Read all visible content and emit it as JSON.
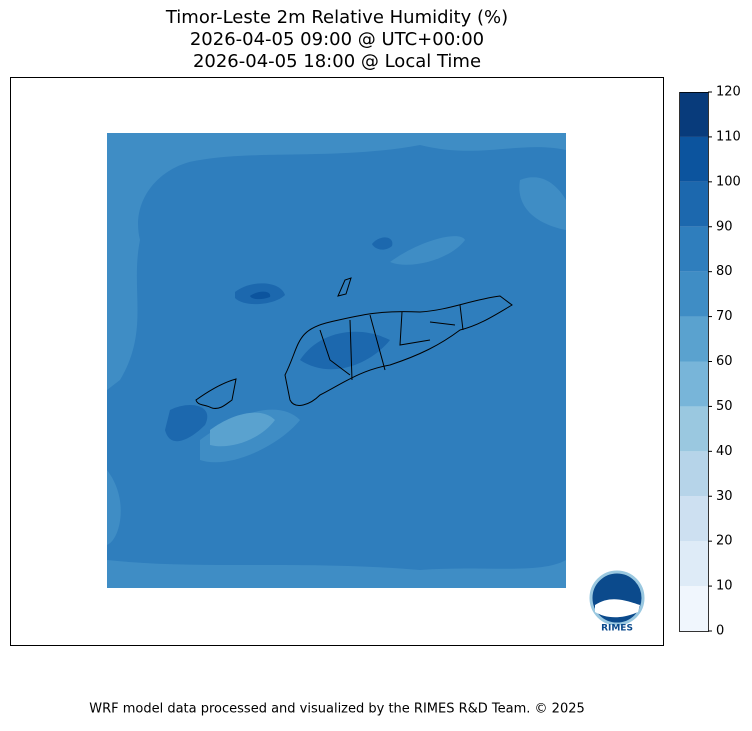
{
  "map": {
    "title": [
      "Timor-Leste 2m Relative Humidity (%)",
      "2026-04-05 09:00 @ UTC+00:00",
      "2026-04-05 18:00 @ Local Time"
    ],
    "colorbar": {
      "lim": [
        0,
        120
      ],
      "ticks": [
        0,
        10,
        20,
        30,
        40,
        50,
        60,
        70,
        80,
        90,
        100,
        110,
        120
      ],
      "colors": [
        "#f0f6fd",
        "#deebf7",
        "#cde0f1",
        "#b6d4e9",
        "#9ac8e0",
        "#78b5d9",
        "#5aa2cf",
        "#3f8dc5",
        "#2f7ebd",
        "#1c68ae",
        "#0c549e",
        "#083b7b"
      ]
    },
    "logo_text": "RIMES"
  },
  "footer": "WRF model data processed and visualized by the RIMES R&D Team. © 2025"
}
